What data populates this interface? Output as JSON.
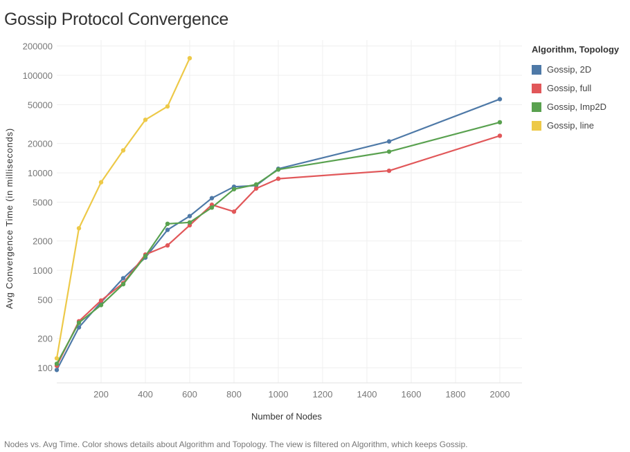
{
  "title": "Gossip Protocol Convergence",
  "caption": "Nodes vs. Avg Time.  Color shows details about Algorithm and Topology. The view is filtered on Algorithm, which keeps Gossip.",
  "legend": {
    "title": "Algorithm, Topology",
    "placement": "top-right",
    "items": [
      {
        "label": "Gossip, 2D",
        "color": "#4e79a7"
      },
      {
        "label": "Gossip, full",
        "color": "#e15759"
      },
      {
        "label": "Gossip, Imp2D",
        "color": "#59a14f"
      },
      {
        "label": "Gossip, line",
        "color": "#edc948"
      }
    ]
  },
  "chart_data": {
    "type": "line",
    "title": "Gossip Protocol Convergence",
    "xlabel": "Number of Nodes",
    "ylabel": "Avg Convergence Time (in milliseconds)",
    "x_scale": "linear",
    "y_scale": "log",
    "xlim": [
      0,
      2100
    ],
    "ylim": [
      70,
      230000
    ],
    "x_ticks": [
      200,
      400,
      600,
      800,
      1000,
      1200,
      1400,
      1600,
      1800,
      2000
    ],
    "y_ticks": [
      100,
      200,
      500,
      1000,
      2000,
      5000,
      10000,
      20000,
      50000,
      100000,
      200000
    ],
    "grid": true,
    "series": [
      {
        "name": "Gossip, 2D",
        "color": "#4e79a7",
        "points": [
          [
            0,
            95
          ],
          [
            100,
            260
          ],
          [
            200,
            470
          ],
          [
            300,
            830
          ],
          [
            400,
            1350
          ],
          [
            500,
            2600
          ],
          [
            600,
            3600
          ],
          [
            700,
            5500
          ],
          [
            800,
            7200
          ],
          [
            900,
            7400
          ],
          [
            1000,
            11000
          ],
          [
            1500,
            21000
          ],
          [
            2000,
            57000
          ]
        ]
      },
      {
        "name": "Gossip, full",
        "color": "#e15759",
        "points": [
          [
            0,
            105
          ],
          [
            100,
            300
          ],
          [
            200,
            490
          ],
          [
            300,
            740
          ],
          [
            400,
            1450
          ],
          [
            500,
            1800
          ],
          [
            600,
            2900
          ],
          [
            700,
            4700
          ],
          [
            800,
            4000
          ],
          [
            900,
            6900
          ],
          [
            1000,
            8700
          ],
          [
            1500,
            10500
          ],
          [
            2000,
            24000
          ]
        ]
      },
      {
        "name": "Gossip, Imp2D",
        "color": "#59a14f",
        "points": [
          [
            0,
            110
          ],
          [
            100,
            290
          ],
          [
            200,
            440
          ],
          [
            300,
            720
          ],
          [
            400,
            1400
          ],
          [
            500,
            3000
          ],
          [
            600,
            3100
          ],
          [
            700,
            4400
          ],
          [
            800,
            6800
          ],
          [
            900,
            7600
          ],
          [
            1000,
            10800
          ],
          [
            1500,
            16500
          ],
          [
            2000,
            33000
          ]
        ]
      },
      {
        "name": "Gossip, line",
        "color": "#edc948",
        "points": [
          [
            0,
            125
          ],
          [
            100,
            2700
          ],
          [
            200,
            8000
          ],
          [
            300,
            17000
          ],
          [
            400,
            35000
          ],
          [
            500,
            48000
          ],
          [
            600,
            150000
          ]
        ]
      }
    ]
  }
}
